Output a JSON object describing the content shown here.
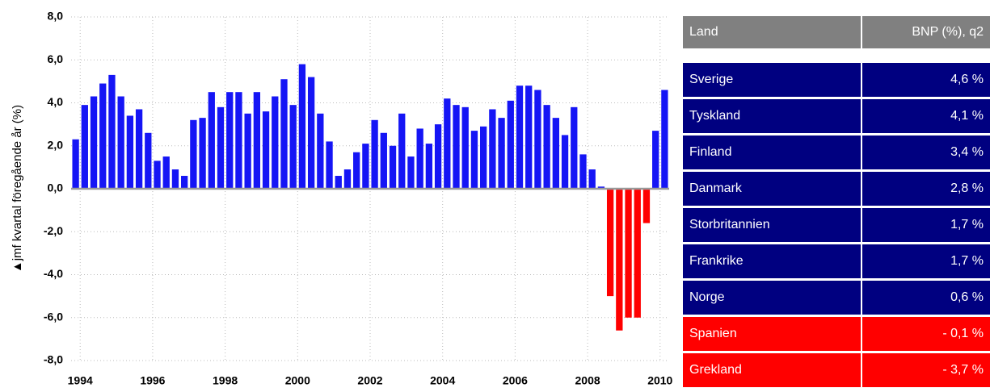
{
  "chart_data": {
    "type": "bar",
    "y_label": "▲jmf kvartal föregående år (%)",
    "categories": [
      null,
      "1994",
      null,
      null,
      null,
      null,
      null,
      null,
      null,
      "1996",
      null,
      null,
      null,
      null,
      null,
      null,
      null,
      "1998",
      null,
      null,
      null,
      null,
      null,
      null,
      null,
      "2000",
      null,
      null,
      null,
      null,
      null,
      null,
      null,
      "2002",
      null,
      null,
      null,
      null,
      null,
      null,
      null,
      "2004",
      null,
      null,
      null,
      null,
      null,
      null,
      null,
      "2006",
      null,
      null,
      null,
      null,
      null,
      null,
      null,
      "2008",
      null,
      null,
      null,
      null,
      null,
      null,
      null,
      "2010"
    ],
    "values": [
      2.3,
      3.9,
      4.3,
      4.9,
      5.3,
      4.3,
      3.4,
      3.7,
      2.6,
      1.3,
      1.5,
      0.9,
      0.6,
      3.2,
      3.3,
      4.5,
      3.8,
      4.5,
      4.5,
      3.5,
      4.5,
      3.6,
      4.3,
      5.1,
      3.9,
      5.8,
      5.2,
      3.5,
      2.2,
      0.6,
      0.9,
      1.7,
      2.1,
      3.2,
      2.6,
      2.0,
      3.5,
      1.5,
      2.8,
      2.1,
      3.0,
      4.2,
      3.9,
      3.8,
      2.7,
      2.9,
      3.7,
      3.3,
      4.1,
      4.8,
      4.8,
      4.6,
      3.9,
      3.3,
      2.5,
      3.8,
      1.6,
      0.9,
      0.1,
      -5.0,
      -6.6,
      -6.0,
      -6.0,
      -1.6,
      2.7,
      4.6
    ],
    "color": "#1515f5",
    "negative_color": "#ff0000",
    "ylim": [
      -8,
      8
    ],
    "yticks": [
      {
        "value": -8,
        "label": "-8,0"
      },
      {
        "value": -6,
        "label": "-6,0"
      },
      {
        "value": -4,
        "label": "-4,0"
      },
      {
        "value": -2,
        "label": "-2,0"
      },
      {
        "value": 0,
        "label": "0,0"
      },
      {
        "value": 2,
        "label": "2,0"
      },
      {
        "value": 4,
        "label": "4,0"
      },
      {
        "value": 6,
        "label": "6,0"
      },
      {
        "value": 8,
        "label": "8,0"
      }
    ],
    "grid": true
  },
  "table": {
    "header": [
      "Land",
      "BNP (%), q2"
    ],
    "header_color": "#808080",
    "rows": [
      {
        "land": "Sverige",
        "bnp": "4,6 %",
        "color": "#000080"
      },
      {
        "land": "Tyskland",
        "bnp": "4,1 %",
        "color": "#000080"
      },
      {
        "land": "Finland",
        "bnp": "3,4 %",
        "color": "#000080"
      },
      {
        "land": "Danmark",
        "bnp": "2,8 %",
        "color": "#000080"
      },
      {
        "land": "Storbritannien",
        "bnp": "1,7 %",
        "color": "#000080"
      },
      {
        "land": "Frankrike",
        "bnp": "1,7 %",
        "color": "#000080"
      },
      {
        "land": "Norge",
        "bnp": "0,6 %",
        "color": "#000080"
      },
      {
        "land": "Spanien",
        "bnp": "- 0,1 %",
        "color": "#ff0000"
      },
      {
        "land": "Grekland",
        "bnp": "- 3,7 %",
        "color": "#ff0000"
      }
    ]
  }
}
